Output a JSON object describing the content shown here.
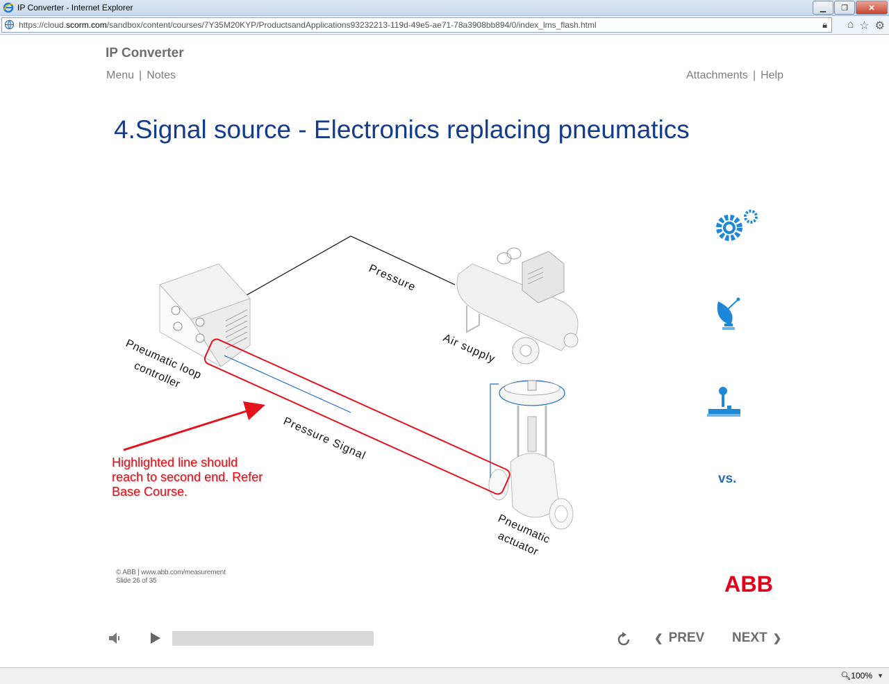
{
  "browser": {
    "window_title": "IP Converter - Internet Explorer",
    "url_prefix": "https://cloud.",
    "url_domain": "scorm.com",
    "url_path": "/sandbox/content/courses/7Y35M20KYP/ProductsandApplications93232213-119d-49e5-ae71-78a3908bb894/0/index_lms_flash.html",
    "zoom": "100%"
  },
  "course": {
    "title": "IP Converter",
    "nav_left": [
      "Menu",
      "Notes"
    ],
    "nav_right": [
      "Attachments",
      "Help"
    ]
  },
  "slide": {
    "title": "4.Signal source - Electronics replacing pneumatics",
    "labels": {
      "pressure": "Pressure",
      "air_supply": "Air supply",
      "controller_1": "Pneumatic loop",
      "controller_2": "controller",
      "pressure_signal": "Pressure Signal",
      "actuator_1": "Pneumatic",
      "actuator_2": "actuator"
    },
    "annotation": [
      "Highlighted line should",
      "reach to second end. Refer",
      "Base Course."
    ],
    "vs": "vs.",
    "footer": [
      "© ABB | www.abb.com/measurement",
      "Slide 26 of 35"
    ],
    "logo_text": "ABB",
    "colors": {
      "title": "#143c8c",
      "annotation": "#e5111b",
      "icon_blue": "#1e88d8",
      "abb_red": "#e2001a"
    }
  },
  "player": {
    "prev": "PREV",
    "next": "NEXT",
    "progress": 0
  }
}
